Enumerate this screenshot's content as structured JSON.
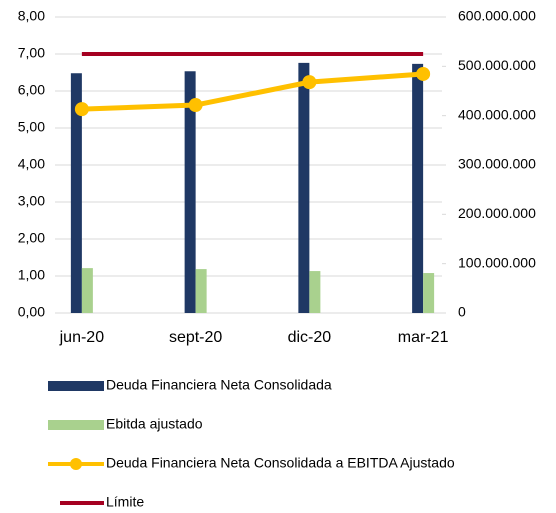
{
  "chart_data": {
    "type": "bar",
    "categories": [
      "jun-20",
      "sept-20",
      "dic-20",
      "mar-21"
    ],
    "series": [
      {
        "name": "Deuda Financiera Neta Consolidada",
        "type": "bar",
        "axis": "y2",
        "color": "#1f3864",
        "values": [
          486000000,
          490000000,
          507000000,
          505000000
        ]
      },
      {
        "name": "Ebitda ajustado",
        "type": "bar",
        "axis": "y2",
        "color": "#a9d18e",
        "values": [
          91000000,
          89000000,
          85000000,
          81000000
        ]
      },
      {
        "name": "Deuda Financiera Neta Consolidada a EBITDA Ajustado",
        "type": "line",
        "marker": true,
        "color": "#ffc000",
        "values": [
          5.51,
          5.62,
          6.24,
          6.46
        ]
      },
      {
        "name": "Límite",
        "type": "line",
        "marker": false,
        "color": "#a50021",
        "values": [
          7,
          7,
          7,
          7
        ]
      }
    ],
    "ylim": [
      0,
      8
    ],
    "yticks": [
      {
        "value": 0,
        "label": "0,00"
      },
      {
        "value": 1,
        "label": "1,00"
      },
      {
        "value": 2,
        "label": "2,00"
      },
      {
        "value": 3,
        "label": "3,00"
      },
      {
        "value": 4,
        "label": "4,00"
      },
      {
        "value": 5,
        "label": "5,00"
      },
      {
        "value": 6,
        "label": "6,00"
      },
      {
        "value": 7,
        "label": "7,00"
      },
      {
        "value": 8,
        "label": "8,00"
      }
    ],
    "y2lim": [
      0,
      600000000
    ],
    "y2ticks": [
      0,
      {
        "value": 100000000,
        "label": "100.000.000"
      },
      {
        "value": 200000000,
        "label": "200.000.000"
      },
      {
        "value": 300000000,
        "label": "300.000.000"
      },
      {
        "value": 400000000,
        "label": "400.000.000"
      },
      {
        "value": 500000000,
        "label": "500.000.000"
      },
      {
        "value": 600000000,
        "label": "600.000.000"
      }
    ],
    "grid": true,
    "legend": "bottom"
  }
}
